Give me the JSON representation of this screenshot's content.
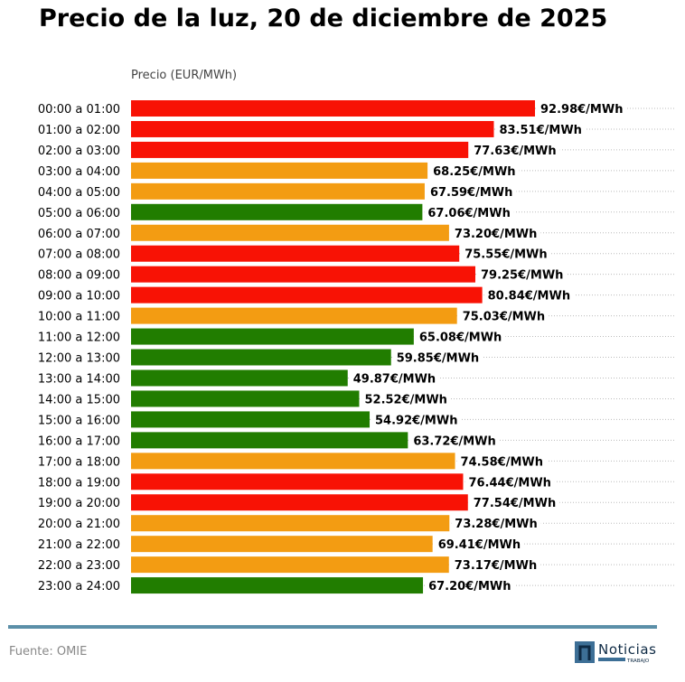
{
  "chart_data": {
    "type": "bar",
    "orientation": "horizontal",
    "title": "Precio de la luz, 20 de diciembre de 2025",
    "xlabel": "Precio (EUR/MWh)",
    "value_suffix": "€/MWh",
    "xlim": [
      0,
      93
    ],
    "grid": "dotted horizontal per row",
    "categories": [
      "00:00 a 01:00",
      "01:00 a 02:00",
      "02:00 a 03:00",
      "03:00 a 04:00",
      "04:00 a 05:00",
      "05:00 a 06:00",
      "06:00 a 07:00",
      "07:00 a 08:00",
      "08:00 a 09:00",
      "09:00 a 10:00",
      "10:00 a 11:00",
      "11:00 a 12:00",
      "12:00 a 13:00",
      "13:00 a 14:00",
      "14:00 a 15:00",
      "15:00 a 16:00",
      "16:00 a 17:00",
      "17:00 a 18:00",
      "18:00 a 19:00",
      "19:00 a 20:00",
      "20:00 a 21:00",
      "21:00 a 22:00",
      "22:00 a 23:00",
      "23:00 a 24:00"
    ],
    "values": [
      92.98,
      83.51,
      77.63,
      68.25,
      67.59,
      67.06,
      73.2,
      75.55,
      79.25,
      80.84,
      75.03,
      65.08,
      59.85,
      49.87,
      52.52,
      54.92,
      63.72,
      74.58,
      76.44,
      77.54,
      73.28,
      69.41,
      73.17,
      67.2
    ],
    "levels": [
      "high",
      "high",
      "high",
      "mid",
      "mid",
      "low",
      "mid",
      "high",
      "high",
      "high",
      "mid",
      "low",
      "low",
      "low",
      "low",
      "low",
      "low",
      "mid",
      "high",
      "high",
      "mid",
      "mid",
      "mid",
      "low"
    ],
    "level_colors": {
      "high": "#f81205",
      "mid": "#f39c12",
      "low": "#217d00"
    }
  },
  "footer": {
    "source": "Fuente: OMIE",
    "logo_text": "Noticias",
    "logo_subtext": "TRABAJO",
    "rule_color": "#5b8fa8"
  }
}
